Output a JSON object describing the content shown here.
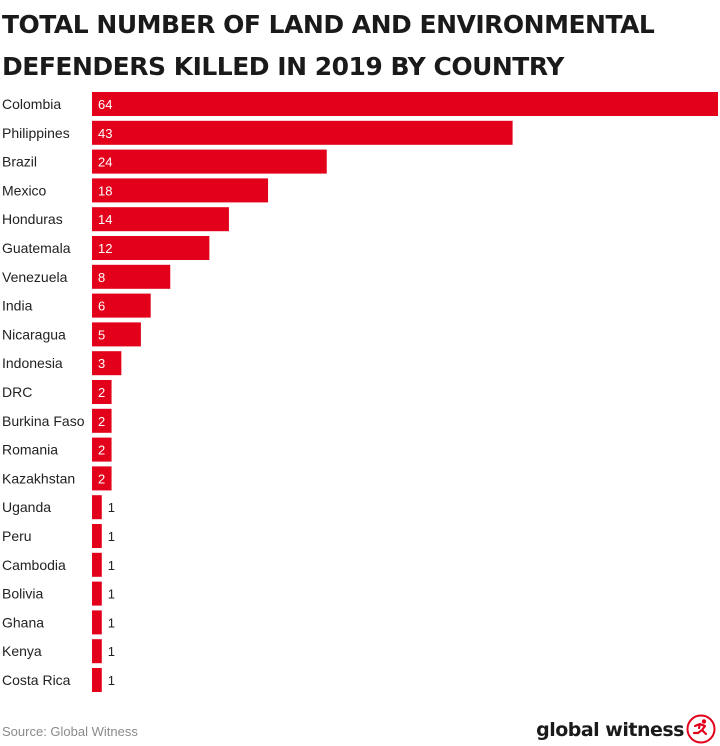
{
  "title": "TOTAL NUMBER OF LAND AND ENVIRONMENTAL DEFENDERS KILLED IN 2019 BY COUNTRY",
  "source": "Source: Global Witness",
  "brand": "global witness",
  "logo_icon": "running-figure-logo-icon",
  "colors": {
    "bar": "#e2001a",
    "text": "#1a1a1a",
    "source": "#8a8a8a"
  },
  "chart_data": {
    "type": "bar",
    "orientation": "horizontal",
    "title": "TOTAL NUMBER OF LAND AND ENVIRONMENTAL DEFENDERS KILLED IN 2019 BY COUNTRY",
    "categories": [
      "Colombia",
      "Philippines",
      "Brazil",
      "Mexico",
      "Honduras",
      "Guatemala",
      "Venezuela",
      "India",
      "Nicaragua",
      "Indonesia",
      "DRC",
      "Burkina Faso",
      "Romania",
      "Kazakhstan",
      "Uganda",
      "Peru",
      "Cambodia",
      "Bolivia",
      "Ghana",
      "Kenya",
      "Costa Rica"
    ],
    "values": [
      64,
      43,
      24,
      18,
      14,
      12,
      8,
      6,
      5,
      3,
      2,
      2,
      2,
      2,
      1,
      1,
      1,
      1,
      1,
      1,
      1
    ],
    "xlim": [
      0,
      64
    ],
    "grid": false,
    "data_labels": true
  }
}
